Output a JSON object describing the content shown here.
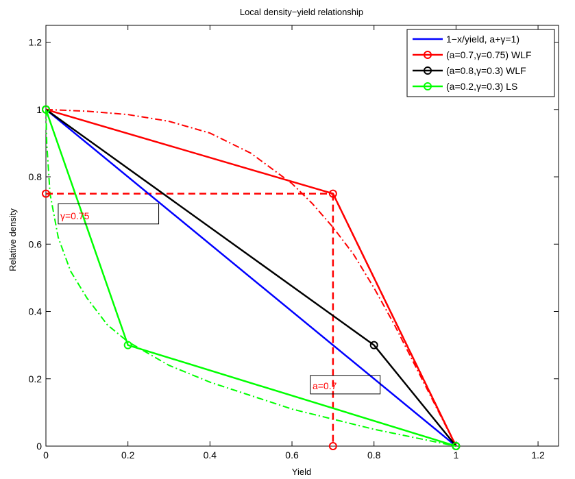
{
  "chart_data": {
    "type": "line",
    "title": "Local density−yield relationship",
    "xlabel": "Yield",
    "ylabel": "Relative density",
    "xlim": [
      0,
      1.25
    ],
    "ylim": [
      0,
      1.25
    ],
    "xticks": [
      0,
      0.2,
      0.4,
      0.6,
      0.8,
      1,
      1.2
    ],
    "yticks": [
      0,
      0.2,
      0.4,
      0.6,
      0.8,
      1,
      1.2
    ],
    "xtick_labels": [
      "0",
      "0.2",
      "0.4",
      "0.6",
      "0.8",
      "1",
      "1.2"
    ],
    "ytick_labels": [
      "0",
      "0.2",
      "0.4",
      "0.6",
      "0.8",
      "1",
      "1.2"
    ],
    "grid": false,
    "legend_position": "top-right",
    "series": [
      {
        "name": "1−x/yield, a+γ=1)",
        "color": "#0000ff",
        "style": "solid",
        "marker": "none",
        "x": [
          0,
          1
        ],
        "y": [
          1,
          0
        ]
      },
      {
        "name": "(a=0.7,γ=0.75) WLF",
        "color": "#ff0000",
        "style": "solid",
        "marker": "circle",
        "x": [
          0,
          0.7,
          1
        ],
        "y": [
          1,
          0.75,
          0
        ]
      },
      {
        "name": "(a=0.8,γ=0.3) WLF",
        "color": "#000000",
        "style": "solid",
        "marker": "circle",
        "x": [
          0,
          0.8,
          1
        ],
        "y": [
          1,
          0.3,
          0
        ]
      },
      {
        "name": "(a=0.2,γ=0.3) LS",
        "color": "#00ff00",
        "style": "solid",
        "marker": "circle",
        "x": [
          0,
          0.2,
          1
        ],
        "y": [
          1,
          0.3,
          0
        ]
      }
    ],
    "curves": [
      {
        "color": "#ff0000",
        "style": "dashdot",
        "x": [
          0,
          0.1,
          0.2,
          0.3,
          0.4,
          0.5,
          0.6,
          0.65,
          0.7,
          0.75,
          0.8,
          0.85,
          0.9,
          0.95,
          1
        ],
        "y": [
          1,
          0.995,
          0.985,
          0.965,
          0.93,
          0.87,
          0.78,
          0.72,
          0.65,
          0.57,
          0.47,
          0.36,
          0.24,
          0.12,
          0
        ]
      },
      {
        "color": "#00ff00",
        "style": "dashdot",
        "x": [
          0,
          0.002,
          0.01,
          0.03,
          0.06,
          0.1,
          0.15,
          0.2,
          0.3,
          0.4,
          0.5,
          0.6,
          0.7,
          0.8,
          0.9,
          1
        ],
        "y": [
          1,
          0.9,
          0.75,
          0.62,
          0.52,
          0.44,
          0.36,
          0.31,
          0.24,
          0.19,
          0.15,
          0.11,
          0.08,
          0.05,
          0.025,
          0
        ]
      }
    ],
    "guides": [
      {
        "color": "#ff0000",
        "style": "dashed",
        "x": [
          0,
          0.7
        ],
        "y": [
          0.75,
          0.75
        ]
      },
      {
        "color": "#ff0000",
        "style": "dashed",
        "x": [
          0.7,
          0.7
        ],
        "y": [
          0.75,
          0
        ]
      },
      {
        "color": "#ff0000",
        "style": "dashed",
        "x": [
          0.7,
          1
        ],
        "y": [
          0.75,
          0
        ]
      }
    ],
    "guide_markers": [
      {
        "color": "#ff0000",
        "x": 0,
        "y": 0.75
      },
      {
        "color": "#ff0000",
        "x": 0.7,
        "y": 0
      }
    ],
    "annotations": [
      {
        "text": "γ=0.75",
        "color": "#ff0000",
        "anchor_x": 0.03,
        "anchor_y": 0.66,
        "box_x1": 0.275,
        "box_y2": 0.72
      },
      {
        "text": "a=0.7",
        "color": "#ff0000",
        "anchor_x": 0.645,
        "anchor_y": 0.155,
        "box_x1": 0.815,
        "box_y2": 0.21
      }
    ]
  }
}
